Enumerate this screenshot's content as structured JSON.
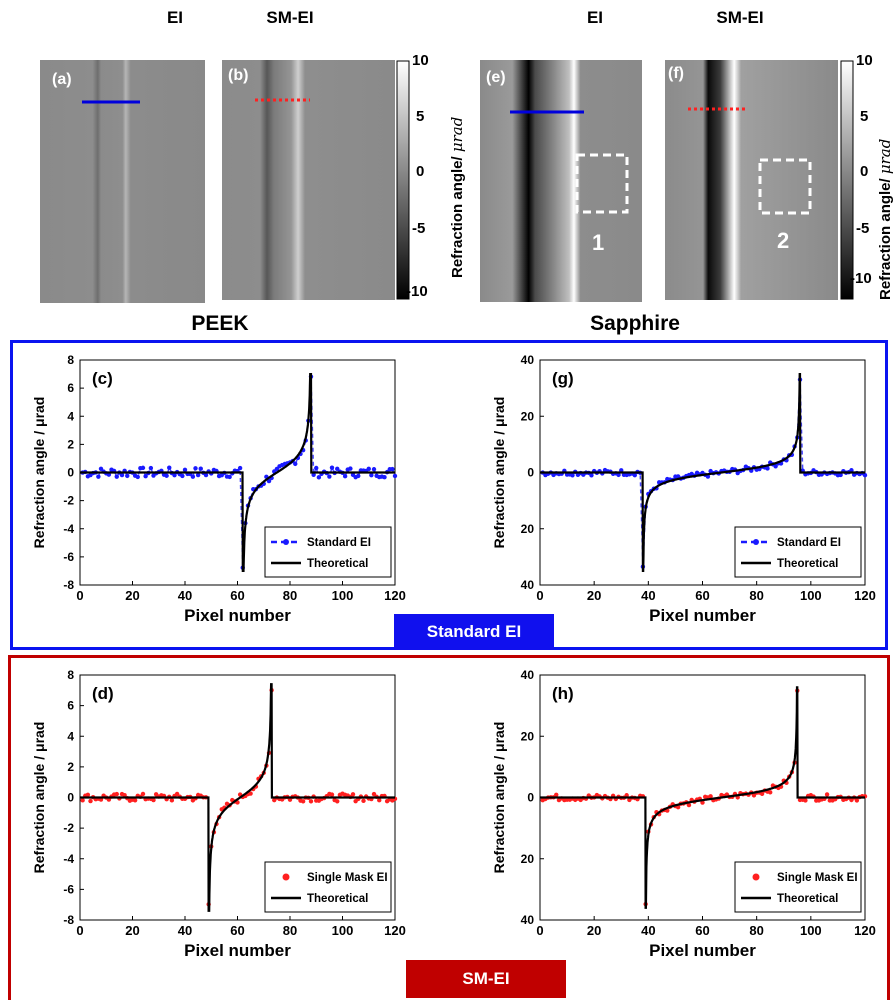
{
  "column_titles": {
    "peek_ei": "EI",
    "peek_smei": "SM-EI",
    "sapphire_ei": "EI",
    "sapphire_smei": "SM-EI"
  },
  "images": {
    "a": {
      "label": "(a)"
    },
    "b": {
      "label": "(b)"
    },
    "e": {
      "label": "(e)",
      "roi_label": "1"
    },
    "f": {
      "label": "(f)",
      "roi_label": "2"
    }
  },
  "colorbar": {
    "ticks": [
      "10",
      "5",
      "0",
      "-5",
      "-10"
    ],
    "title": "Refraction angle/ ",
    "unit": "μrad",
    "range": [
      -10,
      10
    ]
  },
  "group_labels": {
    "peek": "PEEK",
    "sapphire": "Sapphire"
  },
  "section_labels": {
    "standard": "Standard EI",
    "smei": "SM-EI"
  },
  "colors": {
    "standard_border": "#0a14f0",
    "smei_border": "#c00000",
    "standard_series": "#1a1aff",
    "smei_series": "#ff2020",
    "theory": "#000000"
  },
  "chart_data": [
    {
      "id": "c",
      "type": "line",
      "panel_label": "(c)",
      "xlabel": "Pixel number",
      "ylabel": "Refraction angle / μrad",
      "xlim": [
        0,
        120
      ],
      "ylim": [
        -8,
        8
      ],
      "xticks": [
        "0",
        "20",
        "40",
        "60",
        "80",
        "100",
        "120"
      ],
      "yticks": [
        "8",
        "6",
        "4",
        "2",
        "0",
        "-2",
        "-4",
        "-6",
        "-8"
      ],
      "legend": [
        "Standard EI",
        "Theoretical"
      ],
      "theory": {
        "x0": 62,
        "x1": 88,
        "min": -7,
        "max": 7
      },
      "measured_noise": 0.35
    },
    {
      "id": "g",
      "type": "line",
      "panel_label": "(g)",
      "xlabel": "Pixel number",
      "ylabel": "Refraction angle / μrad",
      "xlim": [
        0,
        120
      ],
      "ylim": [
        -40,
        40
      ],
      "xticks": [
        "0",
        "20",
        "40",
        "60",
        "80",
        "100",
        "120"
      ],
      "yticks": [
        "40",
        "20",
        "0",
        "20",
        "40"
      ],
      "legend": [
        "Standard EI",
        "Theoretical"
      ],
      "theory": {
        "x0": 38,
        "x1": 96,
        "min": -35,
        "max": 35
      },
      "measured_noise": 1.0
    },
    {
      "id": "d",
      "type": "scatter",
      "panel_label": "(d)",
      "xlabel": "Pixel number",
      "ylabel": "Refraction angle / μrad",
      "xlim": [
        0,
        120
      ],
      "ylim": [
        -8,
        8
      ],
      "xticks": [
        "0",
        "20",
        "40",
        "60",
        "80",
        "100",
        "120"
      ],
      "yticks": [
        "8",
        "6",
        "4",
        "2",
        "0",
        "-2",
        "-4",
        "-6",
        "-8"
      ],
      "legend": [
        "Single Mask EI",
        "Theoretical"
      ],
      "theory": {
        "x0": 49,
        "x1": 73,
        "min": -7.4,
        "max": 7.4
      },
      "measured_noise": 0.25
    },
    {
      "id": "h",
      "type": "scatter",
      "panel_label": "(h)",
      "xlabel": "Pixel number",
      "ylabel": "Refraction angle / μrad",
      "xlim": [
        0,
        120
      ],
      "ylim": [
        -40,
        40
      ],
      "xticks": [
        "0",
        "20",
        "40",
        "60",
        "80",
        "100",
        "120"
      ],
      "yticks": [
        "40",
        "20",
        "0",
        "20",
        "40"
      ],
      "legend": [
        "Single Mask EI",
        "Theoretical"
      ],
      "theory": {
        "x0": 39,
        "x1": 95,
        "min": -36,
        "max": 36
      },
      "measured_noise": 1.0
    }
  ]
}
